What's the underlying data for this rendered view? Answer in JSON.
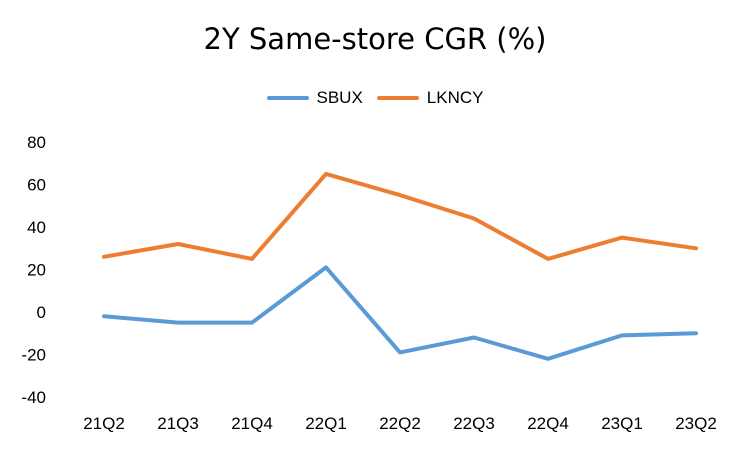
{
  "chart_data": {
    "type": "line",
    "title": "2Y Same-store CGR (%)",
    "xlabel": "",
    "ylabel": "",
    "categories": [
      "21Q2",
      "21Q3",
      "21Q4",
      "22Q1",
      "22Q2",
      "22Q3",
      "22Q4",
      "23Q1",
      "23Q2"
    ],
    "series": [
      {
        "name": "SBUX",
        "color": "#5B9BD5",
        "values": [
          -2,
          -5,
          -5,
          21,
          -19,
          -12,
          -22,
          -11,
          -10
        ]
      },
      {
        "name": "LKNCY",
        "color": "#ED7D31",
        "values": [
          26,
          32,
          25,
          65,
          55,
          44,
          25,
          35,
          30
        ]
      }
    ],
    "ylim": [
      -40,
      80
    ],
    "yticks": [
      -40,
      -20,
      0,
      20,
      40,
      60,
      80
    ],
    "grid": false,
    "legend": "top-center"
  }
}
